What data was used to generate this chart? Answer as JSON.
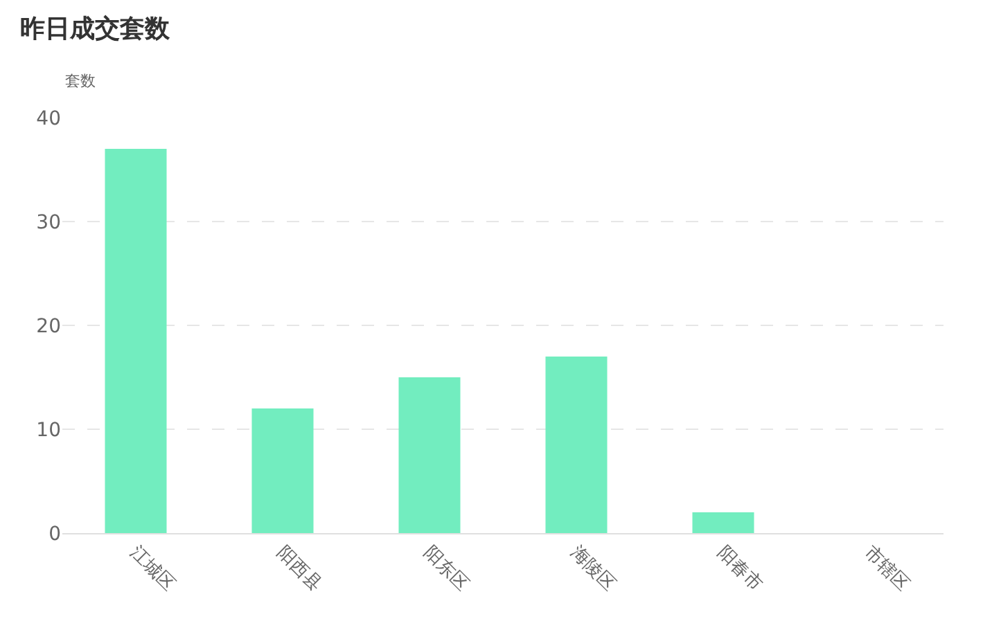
{
  "chart_data": {
    "type": "bar",
    "title": "昨日成交套数",
    "ylabel": "套数",
    "categories": [
      "江城区",
      "阳西县",
      "阳东区",
      "海陵区",
      "阳春市",
      "市辖区"
    ],
    "values": [
      37,
      12,
      15,
      17,
      2,
      0
    ],
    "color": "#72edbf",
    "ylim": [
      0,
      40
    ],
    "yticks": [
      0,
      10,
      20,
      30,
      40
    ],
    "grid": "y",
    "legend": false
  }
}
